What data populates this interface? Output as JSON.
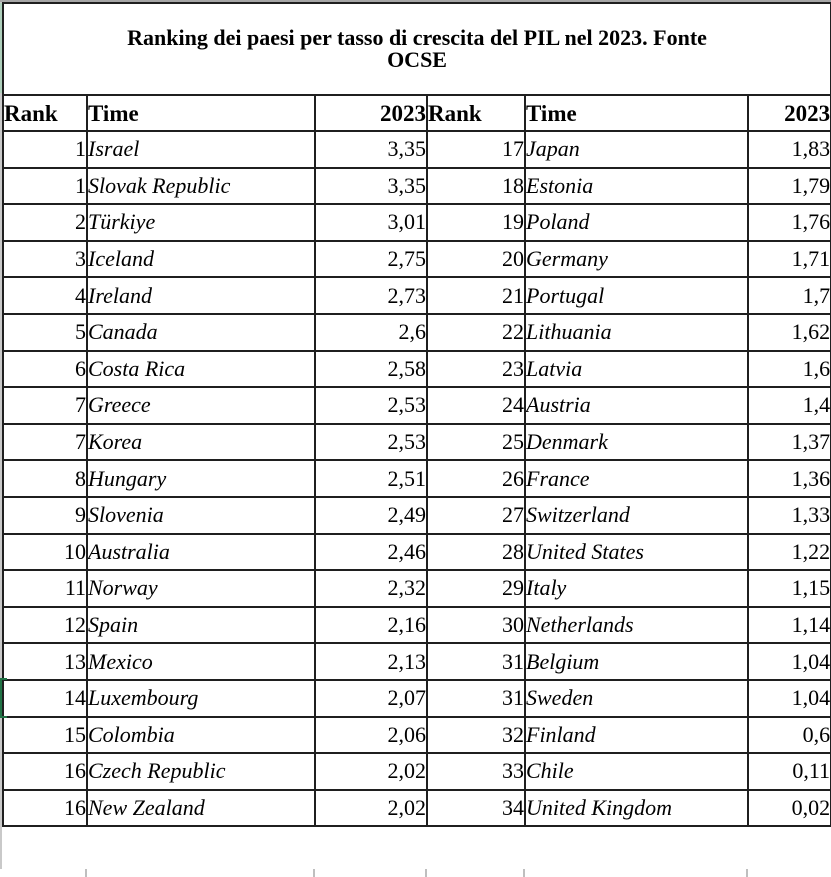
{
  "table": {
    "title_lines": [
      "Ranking dei paesi per tasso di crescita del PIL nel 2023. Fonte",
      "OCSE"
    ],
    "headers": [
      "Rank",
      "Time",
      "2023",
      "Rank",
      "Time",
      "2023"
    ],
    "rows": [
      {
        "left": {
          "rank": "1",
          "country": "Israel",
          "value": "3,35"
        },
        "right": {
          "rank": "17",
          "country": "Japan",
          "value": "1,83"
        }
      },
      {
        "left": {
          "rank": "1",
          "country": "Slovak Republic",
          "value": "3,35"
        },
        "right": {
          "rank": "18",
          "country": "Estonia",
          "value": "1,79"
        }
      },
      {
        "left": {
          "rank": "2",
          "country": "Türkiye",
          "value": "3,01"
        },
        "right": {
          "rank": "19",
          "country": "Poland",
          "value": "1,76"
        }
      },
      {
        "left": {
          "rank": "3",
          "country": "Iceland",
          "value": "2,75"
        },
        "right": {
          "rank": "20",
          "country": "Germany",
          "value": "1,71"
        }
      },
      {
        "left": {
          "rank": "4",
          "country": "Ireland",
          "value": "2,73"
        },
        "right": {
          "rank": "21",
          "country": "Portugal",
          "value": "1,7"
        }
      },
      {
        "left": {
          "rank": "5",
          "country": "Canada",
          "value": "2,6"
        },
        "right": {
          "rank": "22",
          "country": "Lithuania",
          "value": "1,62"
        }
      },
      {
        "left": {
          "rank": "6",
          "country": "Costa Rica",
          "value": "2,58"
        },
        "right": {
          "rank": "23",
          "country": "Latvia",
          "value": "1,6"
        }
      },
      {
        "left": {
          "rank": "7",
          "country": "Greece",
          "value": "2,53"
        },
        "right": {
          "rank": "24",
          "country": "Austria",
          "value": "1,4"
        }
      },
      {
        "left": {
          "rank": "7",
          "country": "Korea",
          "value": "2,53"
        },
        "right": {
          "rank": "25",
          "country": "Denmark",
          "value": "1,37"
        }
      },
      {
        "left": {
          "rank": "8",
          "country": "Hungary",
          "value": "2,51"
        },
        "right": {
          "rank": "26",
          "country": "France",
          "value": "1,36"
        }
      },
      {
        "left": {
          "rank": "9",
          "country": "Slovenia",
          "value": "2,49"
        },
        "right": {
          "rank": "27",
          "country": "Switzerland",
          "value": "1,33"
        }
      },
      {
        "left": {
          "rank": "10",
          "country": "Australia",
          "value": "2,46"
        },
        "right": {
          "rank": "28",
          "country": "United States",
          "value": "1,22"
        }
      },
      {
        "left": {
          "rank": "11",
          "country": "Norway",
          "value": "2,32"
        },
        "right": {
          "rank": "29",
          "country": "Italy",
          "value": "1,15"
        }
      },
      {
        "left": {
          "rank": "12",
          "country": "Spain",
          "value": "2,16"
        },
        "right": {
          "rank": "30",
          "country": "Netherlands",
          "value": "1,14"
        }
      },
      {
        "left": {
          "rank": "13",
          "country": "Mexico",
          "value": "2,13"
        },
        "right": {
          "rank": "31",
          "country": "Belgium",
          "value": "1,04"
        }
      },
      {
        "left": {
          "rank": "14",
          "country": "Luxembourg",
          "value": "2,07"
        },
        "right": {
          "rank": "31",
          "country": "Sweden",
          "value": "1,04"
        }
      },
      {
        "left": {
          "rank": "15",
          "country": "Colombia",
          "value": "2,06"
        },
        "right": {
          "rank": "32",
          "country": "Finland",
          "value": "0,6"
        }
      },
      {
        "left": {
          "rank": "16",
          "country": "Czech Republic",
          "value": "2,02"
        },
        "right": {
          "rank": "33",
          "country": "Chile",
          "value": "0,11"
        }
      },
      {
        "left": {
          "rank": "16",
          "country": "New Zealand",
          "value": "2,02"
        },
        "right": {
          "rank": "34",
          "country": "United Kingdom",
          "value": "0,02"
        }
      }
    ]
  },
  "selection": {
    "row_index": 15,
    "color": "#217346"
  }
}
